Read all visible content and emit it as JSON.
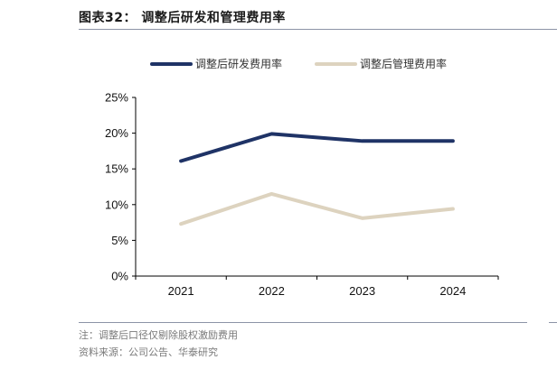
{
  "title": "图表32：  调整后研发和管理费用率",
  "notes": {
    "note": "注：调整后口径仅剔除股权激励费用",
    "source": "资料来源：公司公告、华泰研究"
  },
  "chart_data": {
    "type": "line",
    "x": [
      "2021",
      "2022",
      "2023",
      "2024"
    ],
    "series": [
      {
        "name": "调整后研发费用率",
        "values": [
          16.1,
          19.9,
          18.9,
          18.9
        ],
        "color": "#1f3366"
      },
      {
        "name": "调整后管理费用率",
        "values": [
          7.3,
          11.5,
          8.1,
          9.4
        ],
        "color": "#ddd3bf"
      }
    ],
    "ylim": [
      0,
      25
    ],
    "yticks": [
      "0%",
      "5%",
      "10%",
      "15%",
      "20%",
      "25%"
    ],
    "ytick_values": [
      0,
      5,
      10,
      15,
      20,
      25
    ],
    "legend": "top",
    "grid": false
  }
}
